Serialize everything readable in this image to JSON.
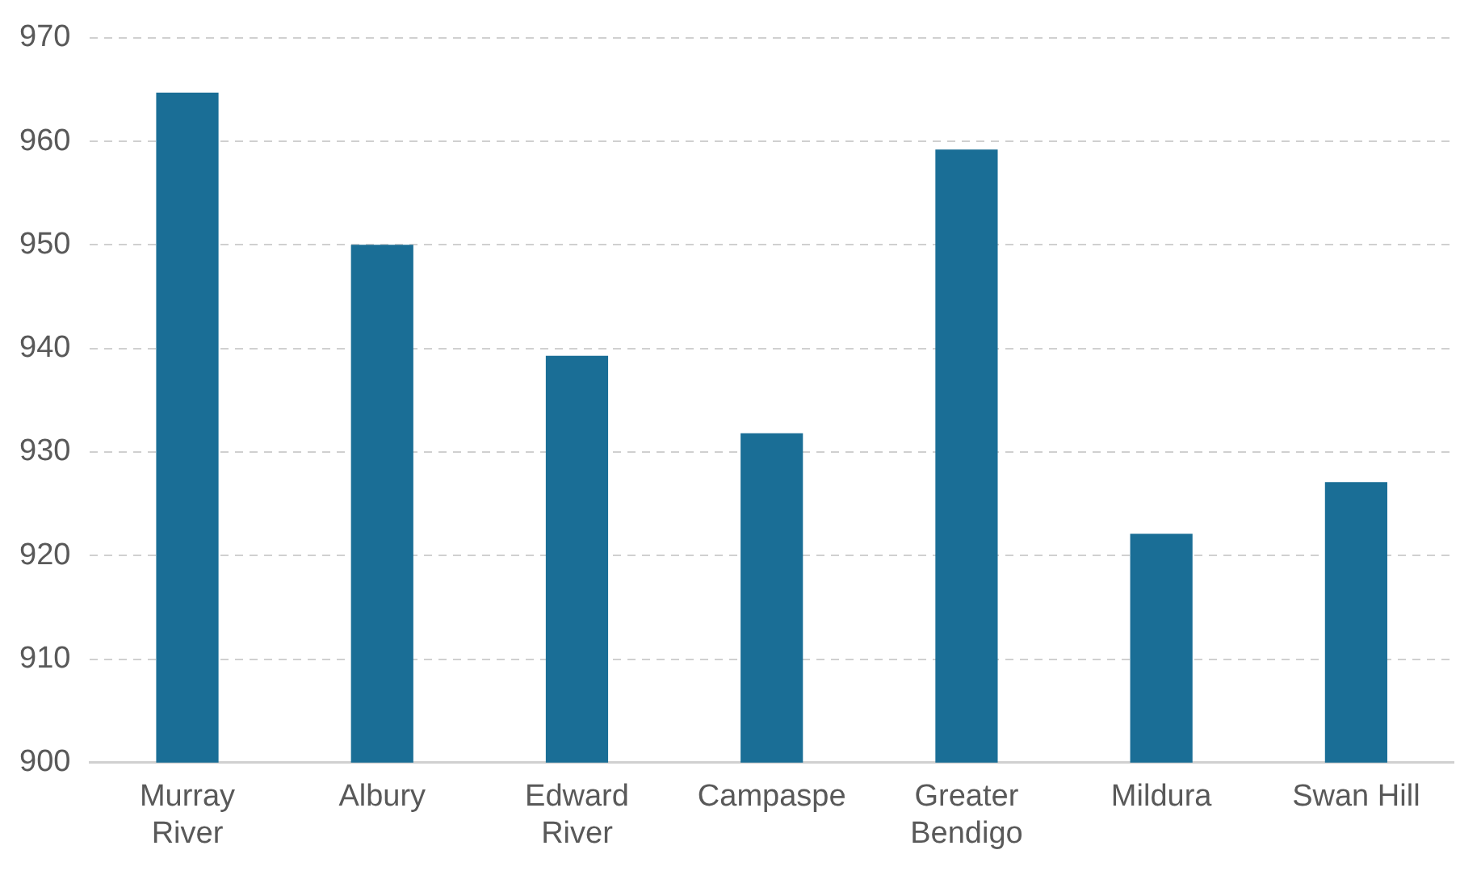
{
  "chart_data": {
    "type": "bar",
    "categories": [
      "Murray River",
      "Albury",
      "Edward River",
      "Campaspe",
      "Greater Bendigo",
      "Mildura",
      "Swan Hill"
    ],
    "values": [
      964.7,
      950,
      939.3,
      931.8,
      959.2,
      922.1,
      927.1
    ],
    "color": "#1a6e96",
    "ylim": [
      900,
      970
    ],
    "yticks": [
      900,
      910,
      920,
      930,
      940,
      950,
      960,
      970
    ],
    "grid": "y",
    "legend": false
  }
}
